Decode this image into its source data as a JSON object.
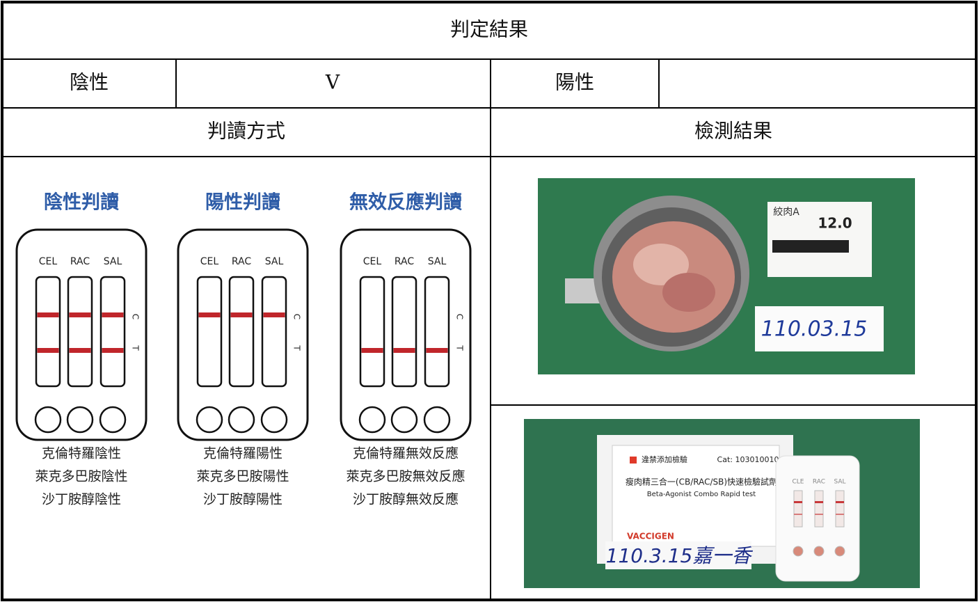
{
  "header": {
    "title": "判定結果"
  },
  "result_row": {
    "negative_label": "陰性",
    "negative_value": "V",
    "positive_label": "陽性"
  },
  "section_headers": {
    "method": "判讀方式",
    "result": "檢測結果"
  },
  "strip_labels": [
    "CEL",
    "RAC",
    "SAL"
  ],
  "line_labels": [
    "C",
    "T"
  ],
  "method_panels": [
    {
      "heading": "陰性判讀",
      "captions": [
        "克倫特羅陰性",
        "萊克多巴胺陰性",
        "沙丁胺醇陰性"
      ]
    },
    {
      "heading": "陽性判讀",
      "captions": [
        "克倫特羅陽性",
        "萊克多巴胺陽性",
        "沙丁胺醇陽性"
      ]
    },
    {
      "heading": "無效反應判讀",
      "captions": [
        "克倫特羅無效反應",
        "萊克多巴胺無效反應",
        "沙丁胺醇無效反應"
      ]
    }
  ],
  "photos": [
    {
      "label": "絞肉A",
      "weight": "12.0",
      "handwriting": "110.03.15"
    },
    {
      "kit_title": "違禁添加檢驗",
      "catalog": "Cat: 103010010",
      "kit_name": "瘦肉精三合一(CB/RAC/SB)快速檢驗試劑",
      "kit_name_en": "Beta-Agonist Combo Rapid test",
      "brand": "VACCIGEN",
      "handwriting": "110.3.15嘉一香",
      "card_labels": [
        "CLE",
        "RAC",
        "SAL"
      ]
    }
  ]
}
